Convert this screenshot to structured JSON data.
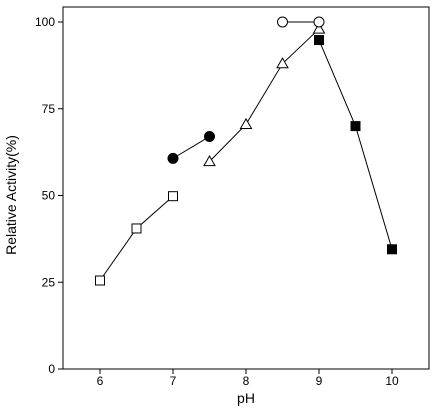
{
  "chart_data": {
    "type": "scatter",
    "title": "",
    "xlabel": "pH",
    "ylabel": "Relative Activity(%)",
    "xlim": [
      5.45,
      10.5
    ],
    "ylim": [
      0,
      105
    ],
    "x_ticks": [
      "6",
      "7",
      "8",
      "9",
      "10"
    ],
    "y_ticks": [
      "0",
      "25",
      "50",
      "75",
      "100"
    ],
    "grid": false,
    "legend": "none",
    "series": [
      {
        "marker": "open-square",
        "x": [
          6.0,
          6.5,
          7.0
        ],
        "y": [
          25.5,
          40.5,
          49.8
        ]
      },
      {
        "marker": "filled-circle",
        "x": [
          7.0,
          7.5
        ],
        "y": [
          60.7,
          67.0
        ]
      },
      {
        "marker": "open-triangle",
        "x": [
          7.5,
          8.0,
          8.5,
          9.0
        ],
        "y": [
          59.8,
          70.5,
          88.0,
          98.0
        ]
      },
      {
        "marker": "open-circle",
        "x": [
          8.5,
          9.0
        ],
        "y": [
          100.0,
          100.0
        ]
      },
      {
        "marker": "filled-square",
        "x": [
          9.0,
          9.5,
          10.0
        ],
        "y": [
          94.8,
          70.0,
          34.5
        ]
      }
    ],
    "colors": {
      "line": "#000000",
      "marker_fill": "#000000",
      "open_fill": "#ffffff"
    }
  }
}
